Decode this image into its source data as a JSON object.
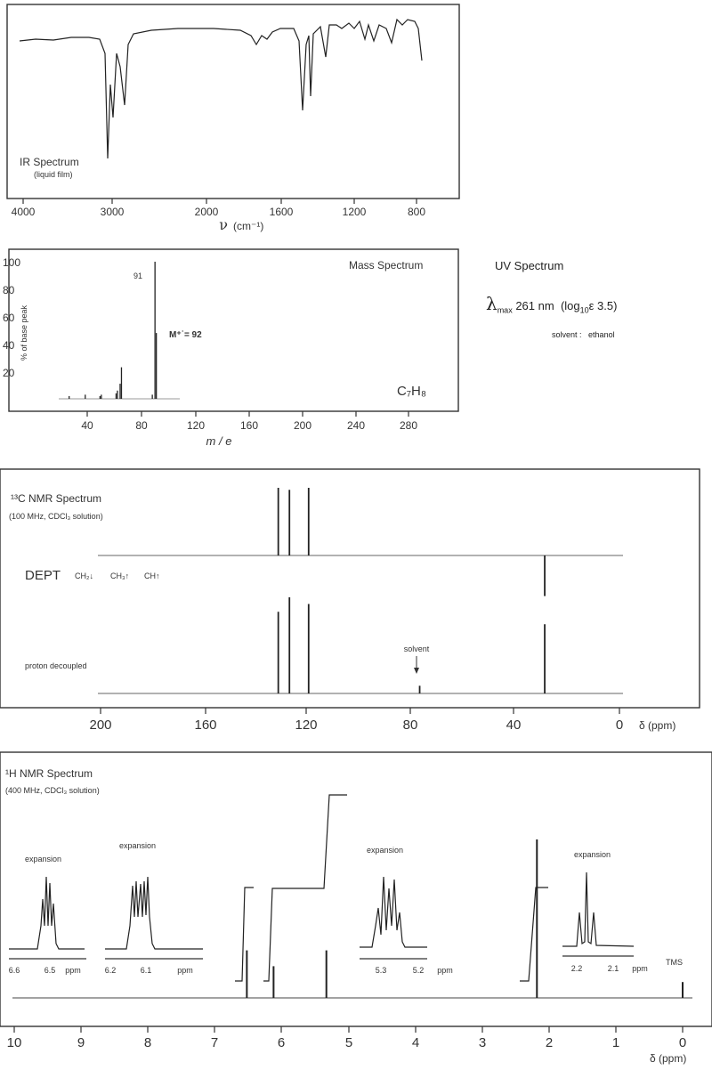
{
  "ir": {
    "title": "IR Spectrum",
    "subtitle": "(liquid film)",
    "xlabel_symbol": "ν",
    "xlabel_unit": "(cm⁻¹)",
    "ticks": [
      "4000",
      "3000",
      "2000",
      "1600",
      "1200",
      "800"
    ]
  },
  "ms": {
    "title": "Mass Spectrum",
    "ylabel": "% of base peak",
    "xlabel": "m / e",
    "formula": "C₇H₈",
    "base_peak_label": "91",
    "molecular_ion_label": "M⁺˙= 92",
    "yticks": [
      "100",
      "80",
      "60",
      "40",
      "20"
    ],
    "xticks": [
      "40",
      "80",
      "120",
      "160",
      "200",
      "240",
      "280"
    ]
  },
  "uv": {
    "title": "UV Spectrum",
    "lambda_symbol": "λ",
    "lambda_sub": "max",
    "value": "261 nm",
    "log_text": "(log",
    "log_sub": "10",
    "epsilon_text": "ε  3.5)",
    "solvent_label": "solvent :",
    "solvent_value": "ethanol"
  },
  "c13": {
    "title": "¹³C NMR Spectrum",
    "subtitle": "(100 MHz, CDCl₃ solution)",
    "dept_label": "DEPT",
    "dept_legend": [
      "CH₂↓",
      "CH₃↑",
      "CH↑"
    ],
    "decoupled_label": "proton decoupled",
    "solvent_label": "solvent",
    "axis_unit": "δ (ppm)",
    "ticks": [
      "200",
      "160",
      "120",
      "80",
      "40",
      "0"
    ]
  },
  "h1": {
    "title": "¹H NMR Spectrum",
    "subtitle": "(400 MHz, CDCl₃ solution)",
    "tms_label": "TMS",
    "axis_unit": "δ (ppm)",
    "ticks": [
      "10",
      "9",
      "8",
      "7",
      "6",
      "5",
      "4",
      "3",
      "2",
      "1",
      "0"
    ],
    "expansions": [
      {
        "label": "expansion",
        "ticks": [
          "6.6",
          "6.5",
          "ppm"
        ]
      },
      {
        "label": "expansion",
        "ticks": [
          "6.2",
          "6.1",
          "ppm"
        ]
      },
      {
        "label": "expansion",
        "ticks": [
          "5.3",
          "5.2",
          "ppm"
        ]
      },
      {
        "label": "expansion",
        "ticks": [
          "2.2",
          "2.1",
          "ppm"
        ]
      }
    ]
  },
  "chart_data": [
    {
      "type": "line",
      "title": "IR Spectrum",
      "xlabel": "ν (cm⁻¹)",
      "xlim": [
        4000,
        800
      ],
      "bands_cm1": [
        3000,
        2960,
        2870,
        2850,
        1640,
        1460,
        1380,
        1220,
        1030,
        990,
        910,
        840
      ]
    },
    {
      "type": "bar",
      "title": "Mass Spectrum",
      "xlabel": "m / e",
      "ylabel": "% of base peak",
      "ylim": [
        0,
        100
      ],
      "xlim": [
        0,
        300
      ],
      "peaks": [
        {
          "mz": 27,
          "intensity": 2
        },
        {
          "mz": 39,
          "intensity": 3
        },
        {
          "mz": 50,
          "intensity": 2
        },
        {
          "mz": 51,
          "intensity": 3
        },
        {
          "mz": 62,
          "intensity": 4
        },
        {
          "mz": 63,
          "intensity": 6
        },
        {
          "mz": 65,
          "intensity": 11
        },
        {
          "mz": 66,
          "intensity": 23
        },
        {
          "mz": 89,
          "intensity": 3
        },
        {
          "mz": 91,
          "intensity": 100
        },
        {
          "mz": 92,
          "intensity": 48
        }
      ]
    },
    {
      "type": "line",
      "title": "¹³C NMR Spectrum",
      "xlabel": "δ (ppm)",
      "xlim": [
        200,
        0
      ],
      "dept_peaks": [
        {
          "ppm": 131.5,
          "intensity": 1.0
        },
        {
          "ppm": 127.2,
          "intensity": 0.97
        },
        {
          "ppm": 119.8,
          "intensity": 1.0
        },
        {
          "ppm": 28.8,
          "intensity": -0.6
        }
      ],
      "decoupled_peaks": [
        {
          "ppm": 131.5,
          "intensity": 0.85
        },
        {
          "ppm": 127.2,
          "intensity": 1.0
        },
        {
          "ppm": 119.8,
          "intensity": 0.93
        },
        {
          "ppm": 77.0,
          "intensity": 0.08
        },
        {
          "ppm": 28.8,
          "intensity": 0.72
        }
      ]
    },
    {
      "type": "line",
      "title": "¹H NMR Spectrum",
      "xlabel": "δ (ppm)",
      "xlim": [
        10,
        0
      ],
      "peaks": [
        {
          "ppm": 6.52,
          "intensity": 0.3
        },
        {
          "ppm": 6.12,
          "intensity": 0.2
        },
        {
          "ppm": 5.33,
          "intensity": 0.3
        },
        {
          "ppm": 2.18,
          "intensity": 1.0
        },
        {
          "ppm": 0.0,
          "intensity": 0.1
        }
      ],
      "integral_steps": [
        {
          "ppm": 6.52,
          "relative": 1
        },
        {
          "ppm": 6.12,
          "relative": 1
        },
        {
          "ppm": 5.33,
          "relative": 2
        },
        {
          "ppm": 2.18,
          "relative": 3
        }
      ]
    }
  ]
}
